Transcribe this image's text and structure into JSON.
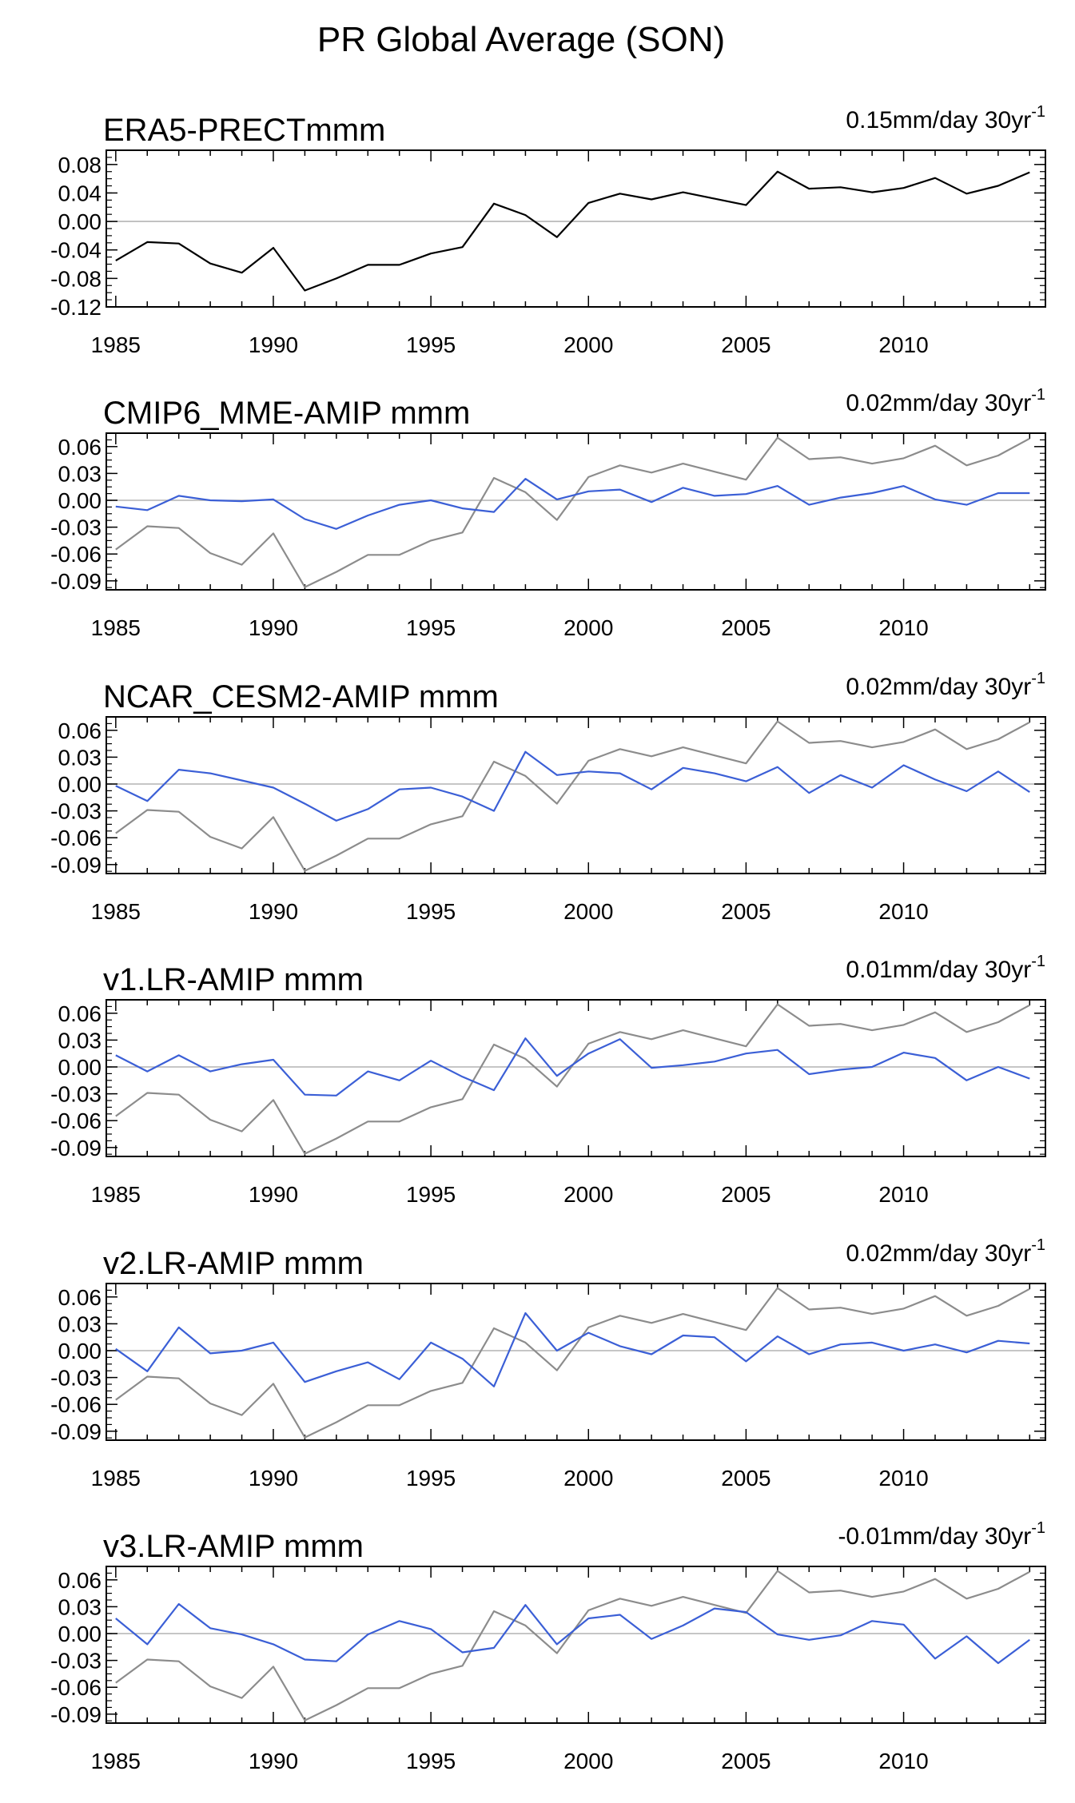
{
  "figure_title": "PR Global Average (SON)",
  "colors": {
    "reference": "#000000",
    "reference_overlay": "#8c8c8c",
    "model": "#3b5fd6",
    "zero_line": "#b4b4b4",
    "axis": "#000000"
  },
  "chart_data": [
    {
      "type": "line",
      "title": "ERA5-PRECTmmm",
      "trend_label": "0.15mm/day 30yr",
      "trend_superscript": "-1",
      "xlabel": "",
      "ylabel": "",
      "xlim": [
        1984.7,
        2014.5
      ],
      "ylim": [
        -0.12,
        0.1
      ],
      "xticks": [
        "1985",
        "1990",
        "1995",
        "2000",
        "2005",
        "2010"
      ],
      "yticks": [
        "0.08",
        "0.04",
        "0.00",
        "-0.04",
        "-0.08",
        "-0.12"
      ],
      "x": [
        1985,
        1986,
        1987,
        1988,
        1989,
        1990,
        1991,
        1992,
        1993,
        1994,
        1995,
        1996,
        1997,
        1998,
        1999,
        2000,
        2001,
        2002,
        2003,
        2004,
        2005,
        2006,
        2007,
        2008,
        2009,
        2010,
        2011,
        2012,
        2013,
        2014
      ],
      "series": [
        {
          "name": "ERA5",
          "role": "reference",
          "values": [
            -0.055,
            -0.029,
            -0.031,
            -0.059,
            -0.072,
            -0.037,
            -0.097,
            -0.08,
            -0.061,
            -0.061,
            -0.045,
            -0.036,
            0.025,
            0.009,
            -0.022,
            0.026,
            0.039,
            0.031,
            0.041,
            0.032,
            0.023,
            0.07,
            0.046,
            0.048,
            0.041,
            0.047,
            0.061,
            0.039,
            0.05,
            0.069
          ]
        }
      ]
    },
    {
      "type": "line",
      "title": "CMIP6_MME-AMIP  mmm",
      "trend_label": "0.02mm/day 30yr",
      "trend_superscript": "-1",
      "xlabel": "",
      "ylabel": "",
      "xlim": [
        1984.7,
        2014.5
      ],
      "ylim": [
        -0.1,
        0.075
      ],
      "xticks": [
        "1985",
        "1990",
        "1995",
        "2000",
        "2005",
        "2010"
      ],
      "yticks": [
        "0.06",
        "0.03",
        "0.00",
        "-0.03",
        "-0.06",
        "-0.09"
      ],
      "x": [
        1985,
        1986,
        1987,
        1988,
        1989,
        1990,
        1991,
        1992,
        1993,
        1994,
        1995,
        1996,
        1997,
        1998,
        1999,
        2000,
        2001,
        2002,
        2003,
        2004,
        2005,
        2006,
        2007,
        2008,
        2009,
        2010,
        2011,
        2012,
        2013,
        2014
      ],
      "series": [
        {
          "name": "ERA5",
          "role": "reference_overlay",
          "values": [
            -0.055,
            -0.029,
            -0.031,
            -0.059,
            -0.072,
            -0.037,
            -0.097,
            -0.08,
            -0.061,
            -0.061,
            -0.045,
            -0.036,
            0.025,
            0.009,
            -0.022,
            0.026,
            0.039,
            0.031,
            0.041,
            0.032,
            0.023,
            0.07,
            0.046,
            0.048,
            0.041,
            0.047,
            0.061,
            0.039,
            0.05,
            0.069
          ]
        },
        {
          "name": "CMIP6_MME-AMIP",
          "role": "model",
          "values": [
            -0.007,
            -0.011,
            0.005,
            0.0,
            -0.001,
            0.001,
            -0.021,
            -0.032,
            -0.017,
            -0.005,
            0.0,
            -0.009,
            -0.013,
            0.024,
            0.001,
            0.01,
            0.012,
            -0.002,
            0.014,
            0.005,
            0.007,
            0.016,
            -0.005,
            0.003,
            0.008,
            0.016,
            0.001,
            -0.005,
            0.008,
            0.008
          ]
        }
      ]
    },
    {
      "type": "line",
      "title": "NCAR_CESM2-AMIP  mmm",
      "trend_label": "0.02mm/day 30yr",
      "trend_superscript": "-1",
      "xlabel": "",
      "ylabel": "",
      "xlim": [
        1984.7,
        2014.5
      ],
      "ylim": [
        -0.1,
        0.075
      ],
      "xticks": [
        "1985",
        "1990",
        "1995",
        "2000",
        "2005",
        "2010"
      ],
      "yticks": [
        "0.06",
        "0.03",
        "0.00",
        "-0.03",
        "-0.06",
        "-0.09"
      ],
      "x": [
        1985,
        1986,
        1987,
        1988,
        1989,
        1990,
        1991,
        1992,
        1993,
        1994,
        1995,
        1996,
        1997,
        1998,
        1999,
        2000,
        2001,
        2002,
        2003,
        2004,
        2005,
        2006,
        2007,
        2008,
        2009,
        2010,
        2011,
        2012,
        2013,
        2014
      ],
      "series": [
        {
          "name": "ERA5",
          "role": "reference_overlay",
          "values": [
            -0.055,
            -0.029,
            -0.031,
            -0.059,
            -0.072,
            -0.037,
            -0.097,
            -0.08,
            -0.061,
            -0.061,
            -0.045,
            -0.036,
            0.025,
            0.009,
            -0.022,
            0.026,
            0.039,
            0.031,
            0.041,
            0.032,
            0.023,
            0.07,
            0.046,
            0.048,
            0.041,
            0.047,
            0.061,
            0.039,
            0.05,
            0.069
          ]
        },
        {
          "name": "NCAR_CESM2-AMIP",
          "role": "model",
          "values": [
            -0.002,
            -0.019,
            0.016,
            0.012,
            0.004,
            -0.004,
            -0.022,
            -0.041,
            -0.028,
            -0.006,
            -0.004,
            -0.014,
            -0.03,
            0.036,
            0.01,
            0.014,
            0.012,
            -0.006,
            0.018,
            0.012,
            0.003,
            0.019,
            -0.01,
            0.01,
            -0.004,
            0.021,
            0.005,
            -0.008,
            0.014,
            -0.009
          ]
        }
      ]
    },
    {
      "type": "line",
      "title": "v1.LR-AMIP  mmm",
      "trend_label": "0.01mm/day 30yr",
      "trend_superscript": "-1",
      "xlabel": "",
      "ylabel": "",
      "xlim": [
        1984.7,
        2014.5
      ],
      "ylim": [
        -0.1,
        0.075
      ],
      "xticks": [
        "1985",
        "1990",
        "1995",
        "2000",
        "2005",
        "2010"
      ],
      "yticks": [
        "0.06",
        "0.03",
        "0.00",
        "-0.03",
        "-0.06",
        "-0.09"
      ],
      "x": [
        1985,
        1986,
        1987,
        1988,
        1989,
        1990,
        1991,
        1992,
        1993,
        1994,
        1995,
        1996,
        1997,
        1998,
        1999,
        2000,
        2001,
        2002,
        2003,
        2004,
        2005,
        2006,
        2007,
        2008,
        2009,
        2010,
        2011,
        2012,
        2013,
        2014
      ],
      "series": [
        {
          "name": "ERA5",
          "role": "reference_overlay",
          "values": [
            -0.055,
            -0.029,
            -0.031,
            -0.059,
            -0.072,
            -0.037,
            -0.097,
            -0.08,
            -0.061,
            -0.061,
            -0.045,
            -0.036,
            0.025,
            0.009,
            -0.022,
            0.026,
            0.039,
            0.031,
            0.041,
            0.032,
            0.023,
            0.07,
            0.046,
            0.048,
            0.041,
            0.047,
            0.061,
            0.039,
            0.05,
            0.069
          ]
        },
        {
          "name": "v1.LR-AMIP",
          "role": "model",
          "values": [
            0.013,
            -0.005,
            0.013,
            -0.005,
            0.003,
            0.008,
            -0.031,
            -0.032,
            -0.005,
            -0.015,
            0.007,
            -0.011,
            -0.026,
            0.032,
            -0.01,
            0.015,
            0.031,
            -0.001,
            0.002,
            0.006,
            0.015,
            0.019,
            -0.008,
            -0.003,
            0.0,
            0.016,
            0.01,
            -0.015,
            0.0,
            -0.013
          ]
        }
      ]
    },
    {
      "type": "line",
      "title": "v2.LR-AMIP  mmm",
      "trend_label": "0.02mm/day 30yr",
      "trend_superscript": "-1",
      "xlabel": "",
      "ylabel": "",
      "xlim": [
        1984.7,
        2014.5
      ],
      "ylim": [
        -0.1,
        0.075
      ],
      "xticks": [
        "1985",
        "1990",
        "1995",
        "2000",
        "2005",
        "2010"
      ],
      "yticks": [
        "0.06",
        "0.03",
        "0.00",
        "-0.03",
        "-0.06",
        "-0.09"
      ],
      "x": [
        1985,
        1986,
        1987,
        1988,
        1989,
        1990,
        1991,
        1992,
        1993,
        1994,
        1995,
        1996,
        1997,
        1998,
        1999,
        2000,
        2001,
        2002,
        2003,
        2004,
        2005,
        2006,
        2007,
        2008,
        2009,
        2010,
        2011,
        2012,
        2013,
        2014
      ],
      "series": [
        {
          "name": "ERA5",
          "role": "reference_overlay",
          "values": [
            -0.055,
            -0.029,
            -0.031,
            -0.059,
            -0.072,
            -0.037,
            -0.097,
            -0.08,
            -0.061,
            -0.061,
            -0.045,
            -0.036,
            0.025,
            0.009,
            -0.022,
            0.026,
            0.039,
            0.031,
            0.041,
            0.032,
            0.023,
            0.07,
            0.046,
            0.048,
            0.041,
            0.047,
            0.061,
            0.039,
            0.05,
            0.069
          ]
        },
        {
          "name": "v2.LR-AMIP",
          "role": "model",
          "values": [
            0.002,
            -0.023,
            0.026,
            -0.003,
            0.0,
            0.009,
            -0.035,
            -0.023,
            -0.013,
            -0.032,
            0.009,
            -0.009,
            -0.04,
            0.042,
            0.0,
            0.02,
            0.005,
            -0.004,
            0.017,
            0.015,
            -0.012,
            0.016,
            -0.004,
            0.007,
            0.009,
            0.0,
            0.007,
            -0.002,
            0.011,
            0.008
          ]
        }
      ]
    },
    {
      "type": "line",
      "title": "v3.LR-AMIP  mmm",
      "trend_label": "-0.01mm/day 30yr",
      "trend_superscript": "-1",
      "xlabel": "",
      "ylabel": "",
      "xlim": [
        1984.7,
        2014.5
      ],
      "ylim": [
        -0.1,
        0.075
      ],
      "xticks": [
        "1985",
        "1990",
        "1995",
        "2000",
        "2005",
        "2010"
      ],
      "yticks": [
        "0.06",
        "0.03",
        "0.00",
        "-0.03",
        "-0.06",
        "-0.09"
      ],
      "x": [
        1985,
        1986,
        1987,
        1988,
        1989,
        1990,
        1991,
        1992,
        1993,
        1994,
        1995,
        1996,
        1997,
        1998,
        1999,
        2000,
        2001,
        2002,
        2003,
        2004,
        2005,
        2006,
        2007,
        2008,
        2009,
        2010,
        2011,
        2012,
        2013,
        2014
      ],
      "series": [
        {
          "name": "ERA5",
          "role": "reference_overlay",
          "values": [
            -0.055,
            -0.029,
            -0.031,
            -0.059,
            -0.072,
            -0.037,
            -0.097,
            -0.08,
            -0.061,
            -0.061,
            -0.045,
            -0.036,
            0.025,
            0.009,
            -0.022,
            0.026,
            0.039,
            0.031,
            0.041,
            0.032,
            0.023,
            0.07,
            0.046,
            0.048,
            0.041,
            0.047,
            0.061,
            0.039,
            0.05,
            0.069
          ]
        },
        {
          "name": "v3.LR-AMIP",
          "role": "model",
          "values": [
            0.017,
            -0.012,
            0.033,
            0.006,
            -0.001,
            -0.012,
            -0.029,
            -0.031,
            -0.001,
            0.014,
            0.005,
            -0.021,
            -0.016,
            0.032,
            -0.012,
            0.017,
            0.021,
            -0.006,
            0.009,
            0.028,
            0.024,
            -0.001,
            -0.007,
            -0.002,
            0.014,
            0.01,
            -0.028,
            -0.003,
            -0.033,
            -0.007
          ]
        }
      ]
    }
  ]
}
